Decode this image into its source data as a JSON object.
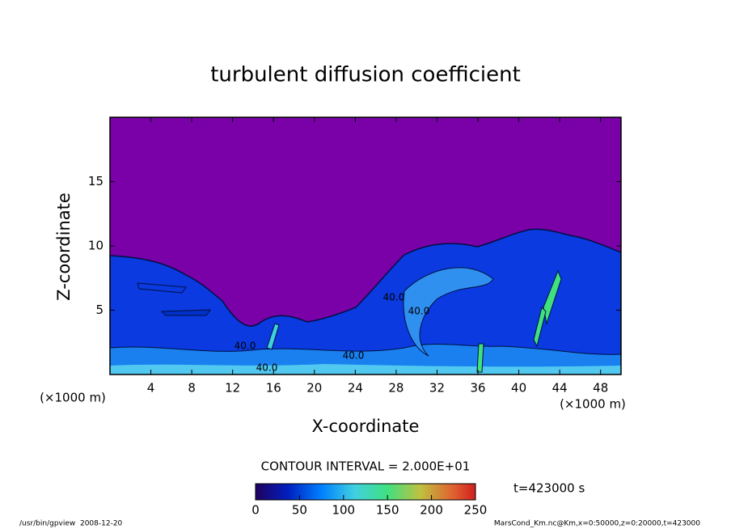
{
  "chart_data": {
    "type": "contour",
    "title": "turbulent diffusion coefficient",
    "x_label": "X-coordinate",
    "y_label": "Z-coordinate",
    "x_unit": "(×1000 m)",
    "y_unit": "(×1000 m)",
    "xlim": [
      0,
      50
    ],
    "xticks": [
      4,
      8,
      12,
      16,
      20,
      24,
      28,
      32,
      36,
      40,
      44,
      48
    ],
    "ylim": [
      0,
      20
    ],
    "yticks": [
      5,
      10,
      15
    ],
    "contour_interval_label": "CONTOUR INTERVAL = 2.000E+01",
    "contour_labels": [
      "40.0",
      "40.0",
      "40.0",
      "40.0",
      "40.0"
    ],
    "colorbar": {
      "lim": [
        0,
        250
      ],
      "ticks": [
        0,
        50,
        100,
        150,
        200,
        250
      ]
    },
    "time_label": "t=423000 s",
    "footer_left": "/usr/bin/gpview  2008-12-20",
    "footer_right": "MarsCond_Km.nc@Km,x=0:50000,z=0:20000,t=423000"
  }
}
